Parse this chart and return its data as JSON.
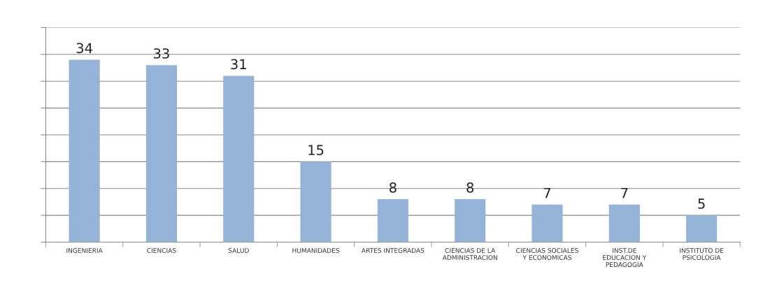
{
  "chart_data": {
    "type": "bar",
    "categories": [
      "INGENIERIA",
      "CIENCIAS",
      "SALUD",
      "HUMANIDADES",
      "ARTES INTEGRADAS",
      "CIENCIAS DE LA\nADMINISTRACION",
      "CIENCIAS SOCIALES\nY ECONOMICAS",
      "INST.DE\nEDUCACION Y\nPEDAGOGIA",
      "INSTITUTO DE\nPSICOLOGIA"
    ],
    "values": [
      34,
      33,
      31,
      15,
      8,
      8,
      7,
      7,
      5
    ],
    "color": "#95b3d7",
    "ylim": [
      0,
      40
    ],
    "yticks": [
      {
        "value": 0,
        "label": null
      },
      {
        "value": 5,
        "label": null
      },
      {
        "value": 10,
        "label": null
      },
      {
        "value": 15,
        "label": null
      },
      {
        "value": 20,
        "label": null
      },
      {
        "value": 25,
        "label": null
      },
      {
        "value": 30,
        "label": null
      },
      {
        "value": 35,
        "label": null
      },
      {
        "value": 40,
        "label": null
      }
    ],
    "tick_labels": "x",
    "grid": "y",
    "data_labels": true,
    "legend": false
  }
}
